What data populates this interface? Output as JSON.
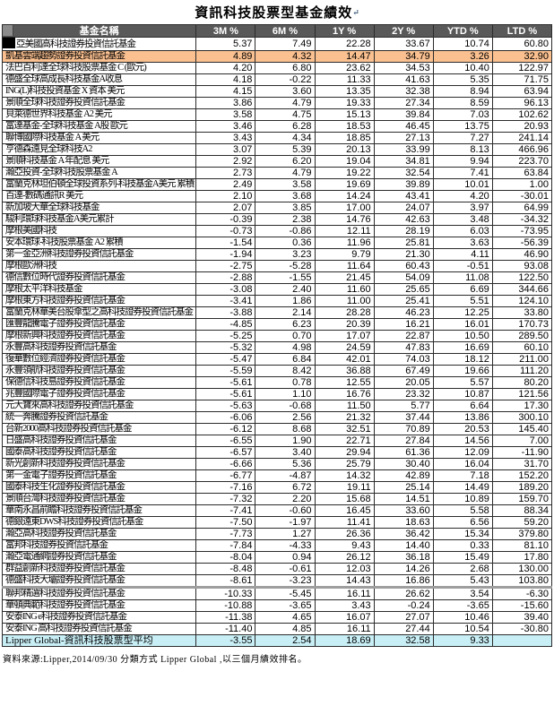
{
  "title": "資訊科技股票型基金績效",
  "title_mark": "↵",
  "columns": [
    "基金名稱",
    "3M %",
    "6M %",
    "1Y %",
    "2Y %",
    "YTD %",
    "LTD %"
  ],
  "footer": "資料來源:Lipper,2014/09/30  分類方式 Lipper Global ,以三個月績效排名。",
  "colors": {
    "header_bg": "#595959",
    "header_text": "#ffffff",
    "highlight_orange": "#FAC090",
    "summary_cyan": "#C9EFF6",
    "divider_gray": "#9E9E9E",
    "redaction": "#000000"
  },
  "rows": [
    {
      "redacted": true,
      "name": "亞美國高科技證券投資信託基金",
      "values": [
        "5.37",
        "7.49",
        "22.28",
        "33.67",
        "10.74",
        "60.80"
      ]
    },
    {
      "highlight": "orange",
      "name": "凱基雲端趨勢證券投資信託基金",
      "values": [
        "4.89",
        "4.32",
        "14.47",
        "34.79",
        "3.26",
        "32.90"
      ]
    },
    {
      "name": "法巴百利達全球科技股票基金 C (歐元)",
      "values": [
        "4.20",
        "6.80",
        "23.62",
        "34.53",
        "10.40",
        "122.97"
      ]
    },
    {
      "name": "德盛全球高成長科技基金A收息",
      "values": [
        "4.18",
        "-0.22",
        "11.33",
        "41.63",
        "5.35",
        "71.75"
      ]
    },
    {
      "name": "ING(L)科技投資基金 X 資本 美元",
      "values": [
        "4.15",
        "3.60",
        "13.35",
        "32.38",
        "8.94",
        "63.94"
      ]
    },
    {
      "name": "景順全球科技證券投資信託基金",
      "values": [
        "3.86",
        "4.79",
        "19.33",
        "27.34",
        "8.59",
        "96.13"
      ]
    },
    {
      "name": "貝萊德世界科技基金 A2 美元",
      "values": [
        "3.58",
        "4.75",
        "15.13",
        "39.84",
        "7.03",
        "102.62"
      ]
    },
    {
      "name": "富達基金-全球科技基金 A股 歐元",
      "values": [
        "3.46",
        "6.28",
        "18.53",
        "46.45",
        "13.75",
        "20.93"
      ]
    },
    {
      "name": "聯博國際科技基金 A 美元",
      "values": [
        "3.43",
        "4.34",
        "18.85",
        "27.13",
        "7.27",
        "241.14"
      ]
    },
    {
      "name": "亨德森遠見全球科技A2",
      "values": [
        "3.07",
        "5.39",
        "20.13",
        "33.99",
        "8.13",
        "466.96"
      ]
    },
    {
      "name": "景順科技基金 A 年配息 美元",
      "values": [
        "2.92",
        "6.20",
        "19.04",
        "34.81",
        "9.94",
        "223.70"
      ]
    },
    {
      "name": "瀚亞投資-全球科技股票基金 A",
      "values": [
        "2.73",
        "4.79",
        "19.22",
        "32.54",
        "7.41",
        "63.84"
      ]
    },
    {
      "name": "富蘭克林坦伯頓全球投資系列-科技基金A美元 累積",
      "values": [
        "2.49",
        "3.58",
        "19.69",
        "39.89",
        "10.01",
        "1.00"
      ]
    },
    {
      "name": "百達-數碼通訊R 美元",
      "values": [
        "2.10",
        "3.68",
        "14.24",
        "43.41",
        "4.20",
        "-30.01"
      ]
    },
    {
      "name": "新加坡大華全球科技基金",
      "values": [
        "2.07",
        "3.85",
        "17.00",
        "24.07",
        "3.97",
        "64.99"
      ]
    },
    {
      "name": "駿利環球科技基金A美元累計",
      "values": [
        "-0.39",
        "2.38",
        "14.76",
        "42.63",
        "3.48",
        "-34.32"
      ]
    },
    {
      "name": "摩根美國科技",
      "values": [
        "-0.73",
        "-0.86",
        "12.11",
        "28.19",
        "6.03",
        "-73.95"
      ]
    },
    {
      "name": "安本環球-科技股票基金 A2 累積",
      "values": [
        "-1.54",
        "0.36",
        "11.96",
        "25.81",
        "3.63",
        "-56.39"
      ]
    },
    {
      "name": "第一金亞洲科技證券投資信託基金",
      "values": [
        "-1.94",
        "3.23",
        "9.79",
        "21.30",
        "4.11",
        "46.90"
      ]
    },
    {
      "name": "摩根歐洲科技",
      "values": [
        "-2.75",
        "-5.28",
        "11.64",
        "60.43",
        "-0.51",
        "93.08"
      ]
    },
    {
      "name": "德信數位時代證券投資信託基金",
      "values": [
        "-2.88",
        "-1.55",
        "21.45",
        "54.09",
        "11.08",
        "122.50"
      ]
    },
    {
      "name": "摩根太平洋科技基金",
      "values": [
        "-3.08",
        "2.40",
        "11.60",
        "25.65",
        "6.69",
        "344.66"
      ]
    },
    {
      "name": "摩根東方科技證券投資信託基金",
      "values": [
        "-3.41",
        "1.86",
        "11.00",
        "25.41",
        "5.51",
        "124.10"
      ]
    },
    {
      "name": "富蘭克林華美台股傘型之高科技證券投資信託基金",
      "values": [
        "-3.88",
        "2.14",
        "28.28",
        "46.23",
        "12.25",
        "33.80"
      ]
    },
    {
      "name": "匯豐龍騰電子證券投資信託基金",
      "values": [
        "-4.85",
        "6.23",
        "20.39",
        "16.21",
        "16.01",
        "170.73"
      ]
    },
    {
      "name": "摩根新興科技證券投資信託基金",
      "values": [
        "-5.25",
        "0.70",
        "17.07",
        "22.87",
        "10.50",
        "289.50"
      ]
    },
    {
      "name": "永豐高科技證券投資信託基金",
      "values": [
        "-5.32",
        "4.98",
        "24.59",
        "47.83",
        "16.69",
        "60.10"
      ]
    },
    {
      "name": "復華數位經濟證券投資信託基金",
      "values": [
        "-5.47",
        "6.84",
        "42.01",
        "74.03",
        "18.12",
        "211.00"
      ]
    },
    {
      "name": "永豐領航科技證券投資信託基金",
      "values": [
        "-5.59",
        "8.42",
        "36.88",
        "67.49",
        "19.66",
        "111.20"
      ]
    },
    {
      "name": "保德信科技島證券投資信託基金",
      "values": [
        "-5.61",
        "0.78",
        "12.55",
        "20.05",
        "5.57",
        "80.20"
      ]
    },
    {
      "name": "兆豐國際電子證券投資信託基金",
      "values": [
        "-5.61",
        "1.10",
        "16.76",
        "23.32",
        "10.87",
        "121.56"
      ]
    },
    {
      "name": "元大寶來高科技證券投資信託基金",
      "values": [
        "-5.63",
        "-0.68",
        "11.50",
        "5.77",
        "6.64",
        "17.30"
      ]
    },
    {
      "name": "統一奔騰證券投資信託基金",
      "values": [
        "-6.06",
        "2.56",
        "21.32",
        "37.44",
        "13.86",
        "300.10"
      ]
    },
    {
      "name": "台新2000高科技證券投資信託基金",
      "values": [
        "-6.12",
        "8.68",
        "32.51",
        "70.89",
        "20.53",
        "145.40"
      ]
    },
    {
      "name": "日盛高科技證券投資信託基金",
      "values": [
        "-6.55",
        "1.90",
        "22.71",
        "27.84",
        "14.56",
        "7.00"
      ]
    },
    {
      "name": "國泰高科技證券投資信託基金",
      "values": [
        "-6.57",
        "3.40",
        "29.94",
        "61.36",
        "12.09",
        "-11.90"
      ]
    },
    {
      "name": "新光創新科技證券投資信託基金",
      "values": [
        "-6.66",
        "5.36",
        "25.79",
        "30.40",
        "16.04",
        "31.70"
      ]
    },
    {
      "name": "第一金電子證券投資信託基金",
      "values": [
        "-6.77",
        "-4.87",
        "14.32",
        "42.89",
        "7.18",
        "152.20"
      ]
    },
    {
      "name": "國泰科技生化證券投資信託基金",
      "values": [
        "-7.16",
        "6.72",
        "19.11",
        "25.14",
        "14.49",
        "189.20"
      ]
    },
    {
      "name": "景順台灣科技證券投資信託基金",
      "values": [
        "-7.32",
        "2.20",
        "15.68",
        "14.51",
        "10.89",
        "159.70"
      ]
    },
    {
      "name": "華南永昌前瞻科技證券投資信託基金",
      "values": [
        "-7.41",
        "-0.60",
        "16.45",
        "33.60",
        "5.58",
        "88.34"
      ]
    },
    {
      "name": "德銀遠東DWS科技證券投資信託基金",
      "values": [
        "-7.50",
        "-1.97",
        "11.41",
        "18.63",
        "6.56",
        "59.20"
      ]
    },
    {
      "name": "瀚亞高科技證券投資信託基金",
      "values": [
        "-7.73",
        "1.27",
        "26.36",
        "36.42",
        "15.34",
        "379.80"
      ]
    },
    {
      "name": "富邦科技證券投資信託基金",
      "values": [
        "-7.84",
        "-4.33",
        "9.43",
        "14.40",
        "0.33",
        "81.10"
      ]
    },
    {
      "name": "瀚亞電通網證券投資信託基金",
      "values": [
        "-8.04",
        "0.94",
        "26.12",
        "36.18",
        "15.49",
        "17.80"
      ]
    },
    {
      "name": "群益創新科技證券投資信託基金",
      "values": [
        "-8.48",
        "-0.61",
        "12.03",
        "14.26",
        "2.68",
        "130.00"
      ]
    },
    {
      "name": "德盛科技大壩證券投資信託基金",
      "values": [
        "-8.61",
        "-3.23",
        "14.43",
        "16.86",
        "5.43",
        "103.80"
      ]
    },
    {
      "divider_top": true,
      "name": "聯邦精選科技證券投資信託基金",
      "values": [
        "-10.33",
        "-5.45",
        "16.11",
        "26.62",
        "3.54",
        "-6.30"
      ]
    },
    {
      "name": "華頓典範科技證券投資信託基金",
      "values": [
        "-10.88",
        "-3.65",
        "3.43",
        "-0.24",
        "-3.65",
        "-15.60"
      ]
    },
    {
      "name": "安泰ING e科技證券投資信託基金",
      "values": [
        "-11.38",
        "4.65",
        "16.07",
        "27.07",
        "10.46",
        "39.40"
      ]
    },
    {
      "name": "安泰ING 高科技證券投資信託基金",
      "values": [
        "-11.40",
        "4.85",
        "16.11",
        "27.44",
        "10.54",
        "-30.80"
      ]
    },
    {
      "summary": true,
      "name": "Lipper Global-資訊科技股票型平均",
      "values": [
        "-3.55",
        "2.54",
        "18.69",
        "32.58",
        "9.33",
        ""
      ]
    }
  ]
}
